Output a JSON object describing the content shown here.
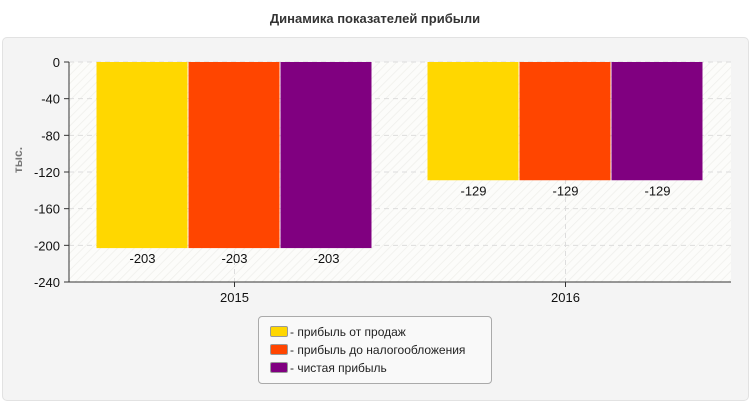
{
  "chart_data": {
    "type": "bar",
    "title": "Динамика показателей прибыли",
    "ylabel": "тыс.",
    "xlabel": "",
    "categories": [
      "2015",
      "2016"
    ],
    "ylim": [
      -240,
      0
    ],
    "yticks": [
      0,
      -40,
      -80,
      -120,
      -160,
      -200,
      -240
    ],
    "grid": true,
    "legend_position": "bottom",
    "series": [
      {
        "name": "прибыль от продаж",
        "color": "#FFD700",
        "values": [
          -203,
          -129
        ]
      },
      {
        "name": "прибыль до налогообложения",
        "color": "#FF4500",
        "values": [
          -203,
          -129
        ]
      },
      {
        "name": "чистая прибыль",
        "color": "#800080",
        "values": [
          -203,
          -129
        ]
      }
    ]
  }
}
